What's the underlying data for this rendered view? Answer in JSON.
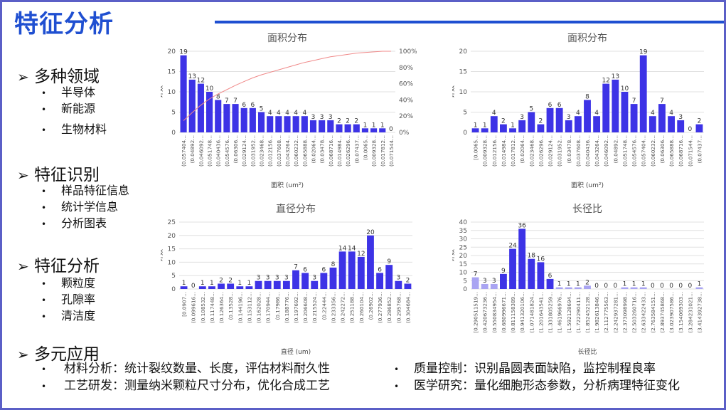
{
  "page": {
    "title": "特征分析"
  },
  "left_outline": [
    {
      "heading": "多种领域",
      "items": [
        "半导体",
        "新能源",
        "生物材料"
      ]
    },
    {
      "heading": "特征识别",
      "items": [
        "样品特征信息",
        "统计学信息",
        "分析图表"
      ]
    },
    {
      "heading": "特征分析",
      "items": [
        "颗粒度",
        "孔隙率",
        "清洁度"
      ]
    },
    {
      "heading": "多元应用",
      "items": []
    }
  ],
  "applications": {
    "left": [
      "材料分析：统计裂纹数量、长度，评估材料耐久性",
      "工艺研发：测量纳米颗粒尺寸分布，优化合成工艺"
    ],
    "right": [
      "质量控制：识别晶圆表面缺陷，监控制程良率",
      "医学研究：量化细胞形态参数，分析病理特征变化"
    ]
  },
  "colors": {
    "accent": "#1f4fd1",
    "bar": "#3d33e6",
    "bar_light": "#a9a4f2",
    "cumulative": "#f08a8a",
    "frame": "#5b5fc7"
  },
  "chart_data": [
    {
      "type": "bar",
      "title": "面积分布",
      "xlabel": "面积 (um²)",
      "ylabel": "计数",
      "ylim": [
        0,
        20
      ],
      "yticks": [
        "0",
        "5",
        "10",
        "15",
        "20"
      ],
      "y2ticks": [
        "0%",
        "20%",
        "40%",
        "60%",
        "80%",
        "100%"
      ],
      "categories": [
        "(0.057404...",
        "(0.04892...",
        "(0.046092...",
        "(0.051748...",
        "(0.040436...",
        "(0.054576...",
        "(0.06306...",
        "(0.029124...",
        "(0.031952...",
        "(0.023468...",
        "(0.012156...",
        "(0.037608...",
        "(0.043264...",
        "(0.060232...",
        "(0.065888...",
        "(0.02064...",
        "(0.03478...",
        "(0.068716...",
        "(0.014984...",
        "(0.026296...",
        "(0.07437...",
        "(0.0065...",
        "(0.009328...",
        "(0.017812...",
        "(0.071544..."
      ],
      "values": [
        19,
        13,
        12,
        10,
        8,
        7,
        7,
        6,
        6,
        5,
        4,
        4,
        4,
        4,
        4,
        3,
        3,
        3,
        2,
        2,
        2,
        1,
        1,
        1,
        0
      ],
      "series": [
        {
          "name": "",
          "values": [
            19,
            13,
            12,
            10,
            8,
            7,
            7,
            6,
            6,
            5,
            4,
            4,
            4,
            4,
            4,
            3,
            3,
            3,
            2,
            2,
            2,
            1,
            1,
            1,
            0
          ]
        }
      ],
      "cumulative_line": true
    },
    {
      "type": "bar",
      "title": "面积分布",
      "xlabel": "面积 (um²)",
      "ylabel": "计数",
      "ylim": [
        0,
        20
      ],
      "yticks": [
        "0",
        "5",
        "10",
        "15",
        "20"
      ],
      "categories": [
        "[0.0065...",
        "(0.009328...",
        "(0.012156...",
        "(0.014984...",
        "(0.017812...",
        "(0.02064...",
        "(0.023468...",
        "(0.026296...",
        "(0.029124...",
        "(0.031952...",
        "(0.03478...",
        "(0.037608...",
        "(0.040436...",
        "(0.043264...",
        "(0.046092...",
        "(0.04892...",
        "(0.051748...",
        "(0.054576...",
        "(0.057404...",
        "(0.060232...",
        "(0.06306...",
        "(0.065888...",
        "(0.068716...",
        "(0.071544...",
        "(0.07437..."
      ],
      "values": [
        1,
        1,
        4,
        2,
        1,
        3,
        5,
        2,
        6,
        6,
        3,
        4,
        8,
        4,
        12,
        13,
        10,
        7,
        19,
        4,
        7,
        4,
        3,
        0,
        2
      ]
    },
    {
      "type": "bar",
      "title": "直径分布",
      "xlabel": "直径 (um)",
      "ylabel": "计数",
      "ylim": [
        0,
        25
      ],
      "yticks": [
        "0",
        "5",
        "10",
        "15",
        "20",
        "25"
      ],
      "categories": [
        "[0.0907...",
        "(0.099616...",
        "(0.108532...",
        "(0.117448...",
        "(0.126364...",
        "(0.13528...",
        "(0.144196...",
        "(0.153112...",
        "(0.162028...",
        "(0.170944...",
        "(0.17986...",
        "(0.188776...",
        "(0.197692...",
        "(0.206608...",
        "(0.215524...",
        "(0.22444...",
        "(0.233356...",
        "(0.242272...",
        "(0.251188...",
        "(0.260104...",
        "(0.26902...",
        "(0.277936...",
        "(0.286852...",
        "(0.295768...",
        "(0.304684..."
      ],
      "values": [
        1,
        0,
        1,
        1,
        2,
        2,
        1,
        1,
        3,
        3,
        3,
        3,
        7,
        6,
        3,
        6,
        8,
        14,
        14,
        12,
        20,
        6,
        9,
        3,
        2
      ]
    },
    {
      "type": "bar",
      "title": "长径比",
      "xlabel": "长径比",
      "ylabel": "计数",
      "ylim": [
        0,
        40
      ],
      "yticks": [
        "0",
        "5",
        "10",
        "15",
        "20",
        "25",
        "30",
        "35",
        "40"
      ],
      "categories": [
        "[0.290511519...",
        "(0.420673236...",
        "(0.550834954...",
        "(0.680996671...",
        "(0.811158389...",
        "(0.941320106...",
        "(1.071481824...",
        "(1.201643541...",
        "(1.331805259...",
        "(1.461966976...",
        "(1.592128694...",
        "(1.722290411...",
        "(1.852452128...",
        "(1.982613846...",
        "(2.112775563...",
        "(2.242937281...",
        "(2.373098998...",
        "(2.503260716...",
        "(2.633422433...",
        "(2.763584151...",
        "(2.893745868...",
        "(3.023907586...",
        "(3.154069303...",
        "(3.284231021...",
        "(3.414392738..."
      ],
      "values": [
        7,
        3,
        3,
        9,
        24,
        36,
        18,
        16,
        6,
        1,
        1,
        1,
        2,
        0,
        0,
        0,
        1,
        1,
        1,
        0,
        0,
        0,
        0,
        0,
        1
      ],
      "faded": [
        0,
        1,
        2,
        9,
        10,
        11,
        12,
        13,
        14,
        15,
        16,
        17,
        18,
        19,
        20,
        21,
        22,
        23,
        24
      ]
    }
  ]
}
